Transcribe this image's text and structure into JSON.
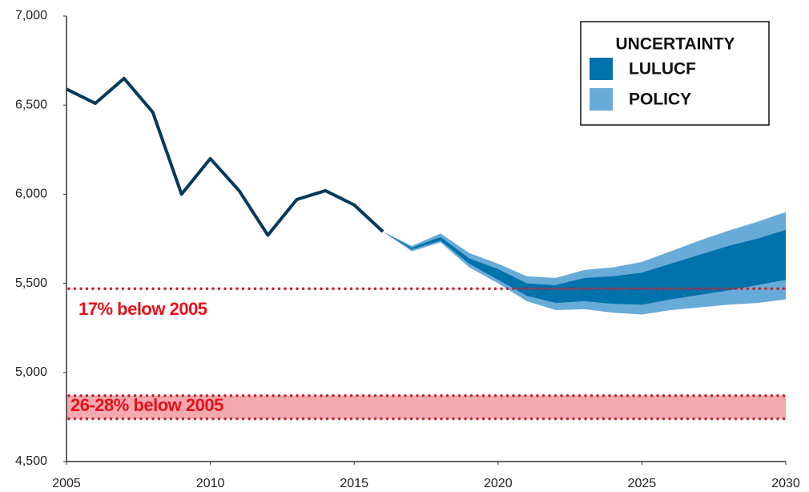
{
  "chart_data": {
    "type": "line",
    "xlim": [
      2005,
      2030
    ],
    "xticks": [
      2005,
      2010,
      2015,
      2020,
      2025,
      2030
    ],
    "ylim": [
      4500,
      7000
    ],
    "yticks": [
      {
        "value": 4500,
        "label": "4,500"
      },
      {
        "value": 5000,
        "label": "5,000"
      },
      {
        "value": 5500,
        "label": "5,500"
      },
      {
        "value": 6000,
        "label": "6,000"
      },
      {
        "value": 6500,
        "label": "6,500"
      },
      {
        "value": 7000,
        "label": "7,000"
      }
    ],
    "line": {
      "color": "#003a5c",
      "x": [
        2005,
        2006,
        2007,
        2008,
        2009,
        2010,
        2011,
        2012,
        2013,
        2014,
        2015,
        2016
      ],
      "values": [
        6590,
        6510,
        6650,
        6460,
        6000,
        6200,
        6020,
        5770,
        5970,
        6020,
        5940,
        5790
      ]
    },
    "legend_title": "UNCERTAINTY",
    "bands": [
      {
        "name": "LULUCF",
        "color": "#0072ab",
        "x": [
          2016,
          2017,
          2018,
          2019,
          2020,
          2021,
          2022,
          2023,
          2024,
          2025,
          2026,
          2027,
          2028,
          2029,
          2030
        ],
        "upper": [
          5790,
          5700,
          5760,
          5640,
          5580,
          5500,
          5490,
          5530,
          5540,
          5560,
          5610,
          5660,
          5710,
          5750,
          5800
        ],
        "lower": [
          5790,
          5690,
          5740,
          5610,
          5520,
          5430,
          5390,
          5400,
          5385,
          5380,
          5410,
          5435,
          5460,
          5490,
          5520
        ]
      },
      {
        "name": "POLICY",
        "color": "#69abd8",
        "x": [
          2016,
          2017,
          2018,
          2019,
          2020,
          2021,
          2022,
          2023,
          2024,
          2025,
          2026,
          2027,
          2028,
          2029,
          2030
        ],
        "upper": [
          5790,
          5710,
          5780,
          5670,
          5610,
          5540,
          5530,
          5575,
          5590,
          5620,
          5680,
          5740,
          5795,
          5845,
          5900
        ],
        "lower": [
          5790,
          5680,
          5730,
          5590,
          5500,
          5400,
          5350,
          5355,
          5335,
          5325,
          5350,
          5365,
          5380,
          5390,
          5410
        ]
      }
    ],
    "reference_line": {
      "value": 5470,
      "label": "17% below 2005",
      "color": "#c8202c"
    },
    "reference_band": {
      "lower": 4740,
      "upper": 4870,
      "label": "26-28% below 2005",
      "color": "#c8202c",
      "fill": "#f2aab0"
    }
  }
}
